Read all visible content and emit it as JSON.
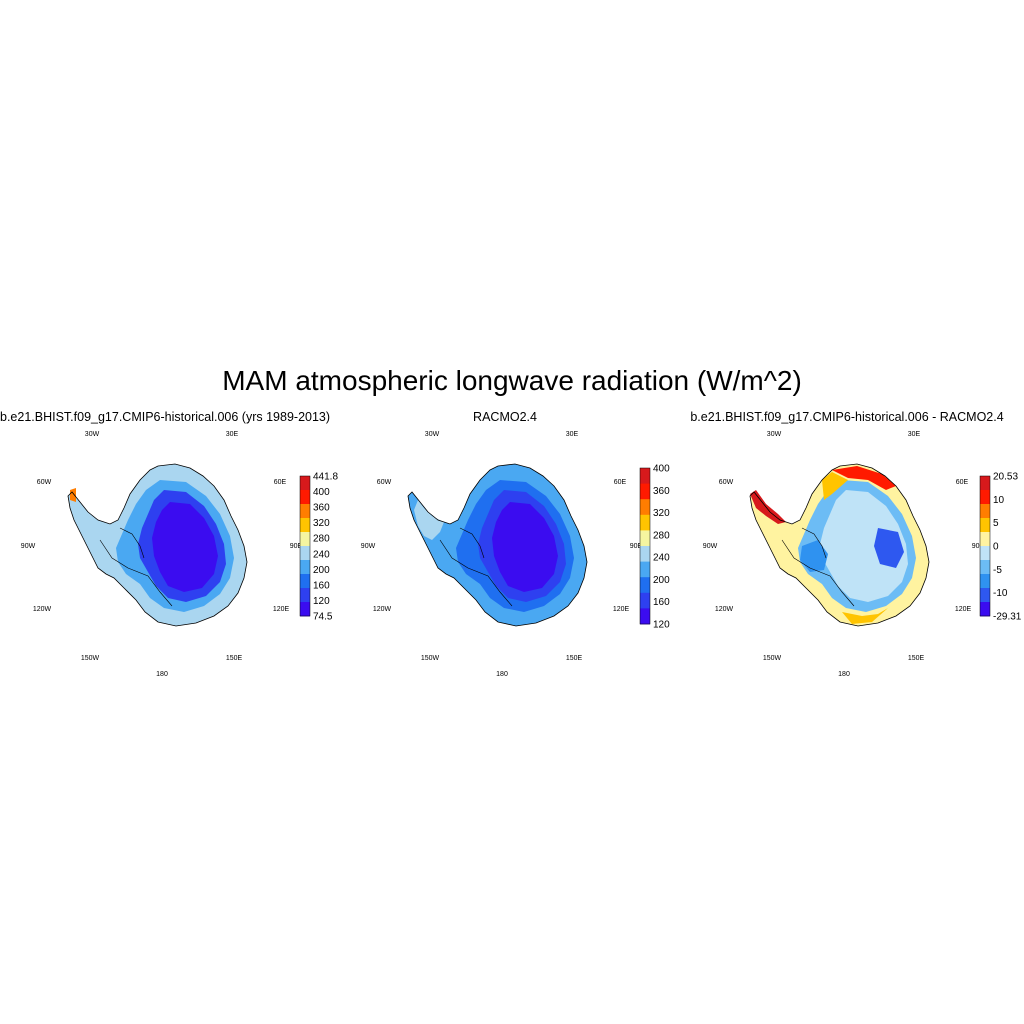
{
  "title": "MAM atmospheric longwave radiation (W/m^2)",
  "panels": [
    {
      "title": "b.e21.BHIST.f09_g17.CMIP6-historical.006 (yrs 1989-2013)",
      "colorbar_labels": [
        "441.8",
        "400",
        "360",
        "320",
        "280",
        "240",
        "200",
        "160",
        "120",
        "74.5"
      ],
      "colors": [
        "#d7191c",
        "#ff1a00",
        "#ff7d00",
        "#ffc400",
        "#f5f5a0",
        "#aad6f0",
        "#4aa8f2",
        "#1f6ff0",
        "#2e40f0",
        "#3b0cf0"
      ]
    },
    {
      "title": "RACMO2.4",
      "colorbar_labels": [
        "400",
        "360",
        "320",
        "280",
        "240",
        "200",
        "160",
        "120"
      ],
      "colors": [
        "#d7191c",
        "#ff1a00",
        "#ff7d00",
        "#ffc400",
        "#f5f5a0",
        "#aad6f0",
        "#4aa8f2",
        "#1f6ff0",
        "#2e40f0",
        "#3b0cf0"
      ]
    },
    {
      "title": "b.e21.BHIST.f09_g17.CMIP6-historical.006 - RACMO2.4",
      "colorbar_labels": [
        "20.53",
        "10",
        "5",
        "0",
        "-5",
        "-10",
        "-29.31"
      ],
      "colors": [
        "#d7191c",
        "#ff1a00",
        "#ff7d00",
        "#ffc400",
        "#fff3a0",
        "#bfe3f7",
        "#6cbcf5",
        "#2f92f0",
        "#2e58f0",
        "#3b0cf0"
      ]
    }
  ],
  "longitude_labels": [
    "30W",
    "30E",
    "60W",
    "60E",
    "90W",
    "90E",
    "120W",
    "120E",
    "150W",
    "150E",
    "180"
  ]
}
